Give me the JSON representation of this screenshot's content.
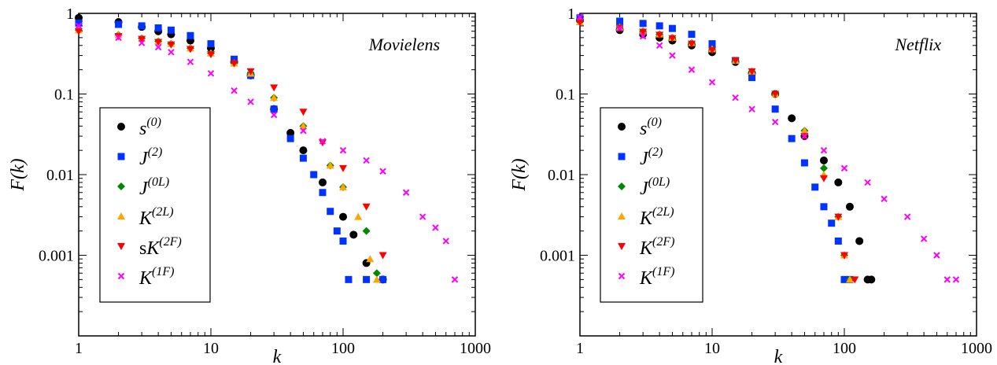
{
  "chart_data": [
    {
      "type": "scatter",
      "title": "Movielens",
      "xlabel": "k",
      "ylabel": "F(k)",
      "xscale": "log",
      "yscale": "log",
      "xlim": [
        1,
        1000
      ],
      "ylim": [
        0.0001,
        1
      ],
      "xticks": [
        "1",
        "10",
        "100",
        "1000"
      ],
      "yticks": [
        "1",
        "0.1",
        "0.01",
        "0.001"
      ],
      "grid": false,
      "legend_position": "bottom-left",
      "series": [
        {
          "name": "s",
          "sup": "(0)",
          "prefix": "",
          "color": "#000000",
          "marker": "circle",
          "points": [
            [
              1,
              0.88
            ],
            [
              2,
              0.78
            ],
            [
              3,
              0.68
            ],
            [
              4,
              0.6
            ],
            [
              5,
              0.55
            ],
            [
              7,
              0.46
            ],
            [
              10,
              0.37
            ],
            [
              15,
              0.25
            ],
            [
              20,
              0.17
            ],
            [
              30,
              0.065
            ],
            [
              40,
              0.033
            ],
            [
              50,
              0.02
            ],
            [
              70,
              0.008
            ],
            [
              100,
              0.003
            ],
            [
              120,
              0.0018
            ],
            [
              150,
              0.0008
            ],
            [
              200,
              0.0005
            ]
          ]
        },
        {
          "name": "J",
          "sup": "(2)",
          "prefix": "",
          "color": "#0033ff",
          "marker": "square",
          "points": [
            [
              1,
              0.76
            ],
            [
              2,
              0.73
            ],
            [
              3,
              0.7
            ],
            [
              4,
              0.66
            ],
            [
              5,
              0.62
            ],
            [
              7,
              0.53
            ],
            [
              10,
              0.42
            ],
            [
              15,
              0.27
            ],
            [
              20,
              0.17
            ],
            [
              30,
              0.065
            ],
            [
              40,
              0.028
            ],
            [
              50,
              0.016
            ],
            [
              60,
              0.01
            ],
            [
              70,
              0.006
            ],
            [
              80,
              0.0035
            ],
            [
              90,
              0.002
            ],
            [
              100,
              0.0015
            ],
            [
              110,
              0.0005
            ],
            [
              150,
              0.0005
            ],
            [
              200,
              0.0005
            ]
          ]
        },
        {
          "name": "J",
          "sup": "(0L)",
          "prefix": "",
          "color": "#008800",
          "marker": "diamond",
          "points": [
            [
              1,
              0.62
            ],
            [
              2,
              0.54
            ],
            [
              3,
              0.49
            ],
            [
              4,
              0.45
            ],
            [
              5,
              0.42
            ],
            [
              7,
              0.37
            ],
            [
              10,
              0.32
            ],
            [
              15,
              0.24
            ],
            [
              20,
              0.18
            ],
            [
              30,
              0.09
            ],
            [
              50,
              0.04
            ],
            [
              80,
              0.013
            ],
            [
              100,
              0.007
            ],
            [
              150,
              0.002
            ],
            [
              180,
              0.0006
            ]
          ]
        },
        {
          "name": "K",
          "sup": "(2L)",
          "prefix": "",
          "color": "#ffa500",
          "marker": "triangle-up",
          "points": [
            [
              1,
              0.62
            ],
            [
              2,
              0.54
            ],
            [
              3,
              0.49
            ],
            [
              4,
              0.45
            ],
            [
              5,
              0.42
            ],
            [
              7,
              0.37
            ],
            [
              10,
              0.32
            ],
            [
              15,
              0.24
            ],
            [
              20,
              0.18
            ],
            [
              30,
              0.09
            ],
            [
              50,
              0.04
            ],
            [
              80,
              0.013
            ],
            [
              100,
              0.007
            ],
            [
              130,
              0.003
            ],
            [
              160,
              0.0009
            ],
            [
              180,
              0.0005
            ]
          ]
        },
        {
          "name": "K",
          "sup": "(2F)",
          "prefix": "s",
          "color": "#ff0000",
          "marker": "triangle-down",
          "points": [
            [
              1,
              0.6
            ],
            [
              2,
              0.52
            ],
            [
              3,
              0.48
            ],
            [
              4,
              0.44
            ],
            [
              5,
              0.41
            ],
            [
              7,
              0.36
            ],
            [
              10,
              0.31
            ],
            [
              15,
              0.24
            ],
            [
              20,
              0.19
            ],
            [
              30,
              0.12
            ],
            [
              50,
              0.06
            ],
            [
              70,
              0.025
            ],
            [
              100,
              0.012
            ],
            [
              150,
              0.004
            ],
            [
              200,
              0.001
            ]
          ]
        },
        {
          "name": "K",
          "sup": "(1F)",
          "prefix": "",
          "color": "#ff00ff",
          "marker": "cross",
          "points": [
            [
              1,
              0.7
            ],
            [
              2,
              0.5
            ],
            [
              3,
              0.43
            ],
            [
              4,
              0.38
            ],
            [
              5,
              0.33
            ],
            [
              7,
              0.25
            ],
            [
              10,
              0.18
            ],
            [
              15,
              0.11
            ],
            [
              20,
              0.08
            ],
            [
              30,
              0.055
            ],
            [
              50,
              0.035
            ],
            [
              70,
              0.026
            ],
            [
              100,
              0.02
            ],
            [
              150,
              0.015
            ],
            [
              200,
              0.011
            ],
            [
              300,
              0.006
            ],
            [
              400,
              0.003
            ],
            [
              500,
              0.0022
            ],
            [
              600,
              0.0015
            ],
            [
              700,
              0.0005
            ]
          ]
        }
      ]
    },
    {
      "type": "scatter",
      "title": "Netflix",
      "xlabel": "k",
      "ylabel": "F(k)",
      "xscale": "log",
      "yscale": "log",
      "xlim": [
        1,
        1000
      ],
      "ylim": [
        0.0001,
        1
      ],
      "xticks": [
        "1",
        "10",
        "100",
        "1000"
      ],
      "yticks": [
        "1",
        "0.1",
        "0.01",
        "0.001"
      ],
      "grid": false,
      "legend_position": "bottom-left",
      "series": [
        {
          "name": "s",
          "sup": "(0)",
          "prefix": "",
          "color": "#000000",
          "marker": "circle",
          "points": [
            [
              1,
              0.82
            ],
            [
              2,
              0.62
            ],
            [
              3,
              0.55
            ],
            [
              4,
              0.5
            ],
            [
              5,
              0.46
            ],
            [
              7,
              0.4
            ],
            [
              10,
              0.33
            ],
            [
              15,
              0.25
            ],
            [
              20,
              0.18
            ],
            [
              30,
              0.1
            ],
            [
              40,
              0.05
            ],
            [
              50,
              0.03
            ],
            [
              70,
              0.015
            ],
            [
              90,
              0.008
            ],
            [
              110,
              0.004
            ],
            [
              130,
              0.0015
            ],
            [
              150,
              0.0005
            ],
            [
              160,
              0.0005
            ]
          ]
        },
        {
          "name": "J",
          "sup": "(2)",
          "prefix": "",
          "color": "#0033ff",
          "marker": "square",
          "points": [
            [
              1,
              0.88
            ],
            [
              2,
              0.8
            ],
            [
              3,
              0.75
            ],
            [
              4,
              0.7
            ],
            [
              5,
              0.65
            ],
            [
              7,
              0.55
            ],
            [
              10,
              0.42
            ],
            [
              15,
              0.26
            ],
            [
              20,
              0.16
            ],
            [
              30,
              0.065
            ],
            [
              40,
              0.028
            ],
            [
              50,
              0.014
            ],
            [
              60,
              0.007
            ],
            [
              70,
              0.004
            ],
            [
              80,
              0.0025
            ],
            [
              90,
              0.0015
            ],
            [
              100,
              0.0005
            ],
            [
              110,
              0.0005
            ]
          ]
        },
        {
          "name": "J",
          "sup": "(0L)",
          "prefix": "",
          "color": "#008800",
          "marker": "diamond",
          "points": [
            [
              1,
              0.8
            ],
            [
              2,
              0.68
            ],
            [
              3,
              0.6
            ],
            [
              4,
              0.55
            ],
            [
              5,
              0.5
            ],
            [
              7,
              0.43
            ],
            [
              10,
              0.36
            ],
            [
              15,
              0.26
            ],
            [
              20,
              0.19
            ],
            [
              30,
              0.1
            ],
            [
              50,
              0.035
            ],
            [
              70,
              0.012
            ],
            [
              90,
              0.003
            ],
            [
              100,
              0.001
            ],
            [
              110,
              0.0005
            ]
          ]
        },
        {
          "name": "K",
          "sup": "(2L)",
          "prefix": "",
          "color": "#ffa500",
          "marker": "triangle-up",
          "points": [
            [
              1,
              0.78
            ],
            [
              2,
              0.67
            ],
            [
              3,
              0.6
            ],
            [
              4,
              0.55
            ],
            [
              5,
              0.5
            ],
            [
              7,
              0.43
            ],
            [
              10,
              0.36
            ],
            [
              15,
              0.26
            ],
            [
              20,
              0.19
            ],
            [
              30,
              0.1
            ],
            [
              50,
              0.035
            ],
            [
              70,
              0.01
            ],
            [
              90,
              0.003
            ],
            [
              100,
              0.001
            ],
            [
              110,
              0.0005
            ]
          ]
        },
        {
          "name": "K",
          "sup": "(2F)",
          "prefix": "",
          "color": "#ff0000",
          "marker": "triangle-down",
          "points": [
            [
              1,
              0.77
            ],
            [
              2,
              0.66
            ],
            [
              3,
              0.59
            ],
            [
              4,
              0.54
            ],
            [
              5,
              0.49
            ],
            [
              7,
              0.42
            ],
            [
              10,
              0.35
            ],
            [
              15,
              0.26
            ],
            [
              20,
              0.19
            ],
            [
              30,
              0.1
            ],
            [
              50,
              0.03
            ],
            [
              70,
              0.009
            ],
            [
              90,
              0.003
            ],
            [
              100,
              0.001
            ],
            [
              120,
              0.0005
            ]
          ]
        },
        {
          "name": "K",
          "sup": "(1F)",
          "prefix": "",
          "color": "#ff00ff",
          "marker": "cross",
          "points": [
            [
              1,
              0.9
            ],
            [
              2,
              0.65
            ],
            [
              3,
              0.52
            ],
            [
              4,
              0.4
            ],
            [
              5,
              0.3
            ],
            [
              7,
              0.2
            ],
            [
              10,
              0.14
            ],
            [
              15,
              0.09
            ],
            [
              20,
              0.065
            ],
            [
              30,
              0.045
            ],
            [
              50,
              0.03
            ],
            [
              70,
              0.02
            ],
            [
              100,
              0.012
            ],
            [
              150,
              0.008
            ],
            [
              200,
              0.005
            ],
            [
              300,
              0.003
            ],
            [
              400,
              0.0016
            ],
            [
              500,
              0.001
            ],
            [
              600,
              0.0005
            ],
            [
              700,
              0.0005
            ]
          ]
        }
      ]
    }
  ]
}
